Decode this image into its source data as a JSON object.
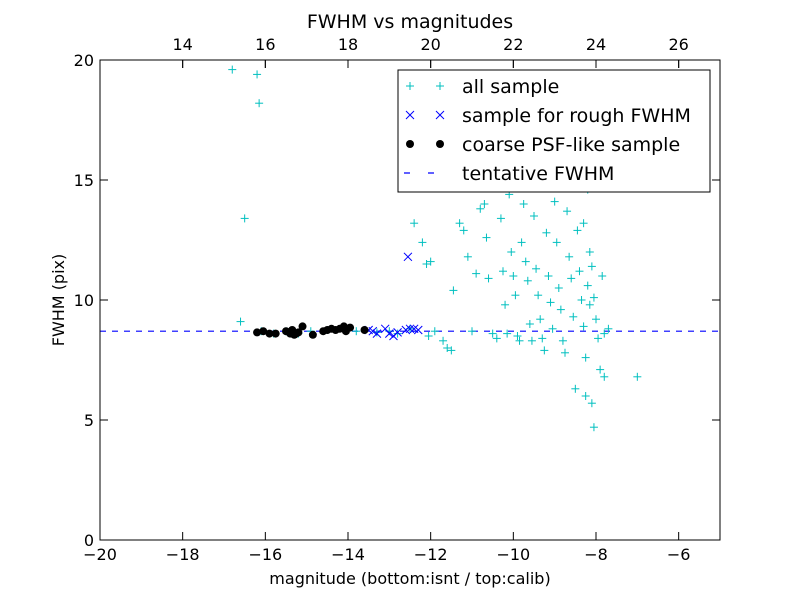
{
  "chart_data": {
    "type": "scatter",
    "title": "FWHM vs magnitudes",
    "xlabel": "magnitude (bottom:isnt / top:calib)",
    "ylabel": "FWHM (pix)",
    "xlim": [
      -20,
      -5
    ],
    "ylim": [
      0,
      20
    ],
    "x_ticks": [
      -20,
      -18,
      -16,
      -14,
      -12,
      -10,
      -8,
      -6
    ],
    "x_tick_labels": [
      "−20",
      "−18",
      "−16",
      "−14",
      "−12",
      "−10",
      "−8",
      "−6"
    ],
    "y_ticks": [
      0,
      5,
      10,
      15,
      20
    ],
    "y_tick_labels": [
      "0",
      "5",
      "10",
      "15",
      "20"
    ],
    "top_axis": {
      "ticks": [
        14,
        16,
        18,
        20,
        22,
        24,
        26
      ],
      "tick_labels": [
        "14",
        "16",
        "18",
        "20",
        "22",
        "24",
        "26"
      ],
      "offset": 32
    },
    "grid": false,
    "legend_position": "top-right",
    "colors": {
      "all_sample": "#00bfbf",
      "rough": "#0000ff",
      "coarse": "#000000",
      "tentative": "#0000ff"
    },
    "legend": [
      {
        "key": "all",
        "label": "all sample"
      },
      {
        "key": "rough",
        "label": "sample for rough FWHM"
      },
      {
        "key": "coarse",
        "label": "coarse PSF-like sample"
      },
      {
        "key": "tentative",
        "label": "tentative FWHM"
      }
    ],
    "tentative_fwhm": 8.7,
    "series": [
      {
        "name": "all sample",
        "marker": "plus",
        "points": [
          [
            -16.8,
            19.6
          ],
          [
            -16.2,
            19.4
          ],
          [
            -16.15,
            18.2
          ],
          [
            -16.5,
            13.4
          ],
          [
            -16.6,
            9.1
          ],
          [
            -16.1,
            8.7
          ],
          [
            -15.8,
            8.6
          ],
          [
            -15.5,
            8.7
          ],
          [
            -15.2,
            8.6
          ],
          [
            -14.9,
            8.7
          ],
          [
            -14.5,
            8.75
          ],
          [
            -14.1,
            8.8
          ],
          [
            -13.8,
            8.7
          ],
          [
            -13.3,
            8.65
          ],
          [
            -13.0,
            8.7
          ],
          [
            -12.8,
            8.6
          ],
          [
            -12.5,
            8.8
          ],
          [
            -12.4,
            13.2
          ],
          [
            -12.2,
            12.4
          ],
          [
            -12.1,
            11.5
          ],
          [
            -12.0,
            11.6
          ],
          [
            -12.05,
            8.5
          ],
          [
            -11.9,
            8.7
          ],
          [
            -11.7,
            8.3
          ],
          [
            -11.6,
            8.0
          ],
          [
            -11.5,
            7.9
          ],
          [
            -11.45,
            10.4
          ],
          [
            -11.3,
            13.2
          ],
          [
            -11.2,
            12.9
          ],
          [
            -11.1,
            11.8
          ],
          [
            -11.0,
            8.7
          ],
          [
            -10.9,
            11.1
          ],
          [
            -10.8,
            13.8
          ],
          [
            -10.7,
            14.0
          ],
          [
            -10.65,
            12.6
          ],
          [
            -10.6,
            10.9
          ],
          [
            -10.5,
            8.6
          ],
          [
            -10.4,
            8.4
          ],
          [
            -10.3,
            13.4
          ],
          [
            -10.25,
            11.2
          ],
          [
            -10.2,
            9.8
          ],
          [
            -10.15,
            8.6
          ],
          [
            -10.1,
            14.4
          ],
          [
            -10.05,
            12.0
          ],
          [
            -10.0,
            11.0
          ],
          [
            -9.95,
            10.2
          ],
          [
            -9.9,
            8.5
          ],
          [
            -9.85,
            8.3
          ],
          [
            -9.8,
            12.4
          ],
          [
            -9.75,
            14.0
          ],
          [
            -9.7,
            11.6
          ],
          [
            -9.65,
            10.8
          ],
          [
            -9.6,
            9.0
          ],
          [
            -9.55,
            8.3
          ],
          [
            -9.5,
            13.5
          ],
          [
            -9.45,
            11.3
          ],
          [
            -9.4,
            10.2
          ],
          [
            -9.35,
            9.2
          ],
          [
            -9.3,
            8.4
          ],
          [
            -9.25,
            7.9
          ],
          [
            -9.2,
            12.8
          ],
          [
            -9.15,
            11.0
          ],
          [
            -9.1,
            9.9
          ],
          [
            -9.05,
            8.8
          ],
          [
            -9.0,
            14.1
          ],
          [
            -8.95,
            12.4
          ],
          [
            -8.9,
            10.5
          ],
          [
            -8.85,
            9.6
          ],
          [
            -8.8,
            8.3
          ],
          [
            -8.75,
            7.8
          ],
          [
            -8.7,
            13.7
          ],
          [
            -8.65,
            11.8
          ],
          [
            -8.6,
            10.9
          ],
          [
            -8.55,
            9.3
          ],
          [
            -8.5,
            15.2
          ],
          [
            -8.45,
            12.9
          ],
          [
            -8.4,
            11.2
          ],
          [
            -8.35,
            10.0
          ],
          [
            -8.3,
            8.9
          ],
          [
            -8.25,
            7.6
          ],
          [
            -8.2,
            14.6
          ],
          [
            -8.15,
            12.0
          ],
          [
            -8.1,
            11.4
          ],
          [
            -8.05,
            10.1
          ],
          [
            -8.0,
            9.2
          ],
          [
            -7.95,
            8.4
          ],
          [
            -7.9,
            7.1
          ],
          [
            -7.85,
            11.0
          ],
          [
            -7.8,
            8.6
          ],
          [
            -7.7,
            8.8
          ],
          [
            -8.5,
            6.3
          ],
          [
            -8.25,
            6.0
          ],
          [
            -8.1,
            5.7
          ],
          [
            -8.05,
            4.7
          ],
          [
            -7.8,
            6.8
          ],
          [
            -7.0,
            6.8
          ],
          [
            -9.2,
            16.3
          ],
          [
            -9.0,
            15.9
          ],
          [
            -8.8,
            16.6
          ],
          [
            -8.6,
            17.3
          ],
          [
            -8.4,
            15.7
          ],
          [
            -9.4,
            14.8
          ],
          [
            -8.3,
            13.2
          ],
          [
            -8.2,
            10.6
          ],
          [
            -8.15,
            9.8
          ]
        ]
      },
      {
        "name": "sample for rough FWHM",
        "marker": "cross",
        "points": [
          [
            -13.5,
            8.75
          ],
          [
            -13.4,
            8.7
          ],
          [
            -13.3,
            8.6
          ],
          [
            -13.1,
            8.8
          ],
          [
            -13.0,
            8.6
          ],
          [
            -12.9,
            8.5
          ],
          [
            -12.8,
            8.65
          ],
          [
            -12.6,
            8.75
          ],
          [
            -12.5,
            8.8
          ],
          [
            -12.4,
            8.8
          ],
          [
            -12.3,
            8.75
          ],
          [
            -12.55,
            11.8
          ]
        ]
      },
      {
        "name": "coarse PSF-like sample",
        "marker": "dot",
        "points": [
          [
            -16.2,
            8.65
          ],
          [
            -16.05,
            8.7
          ],
          [
            -15.9,
            8.6
          ],
          [
            -15.75,
            8.6
          ],
          [
            -15.5,
            8.7
          ],
          [
            -15.4,
            8.6
          ],
          [
            -15.35,
            8.75
          ],
          [
            -15.3,
            8.55
          ],
          [
            -15.25,
            8.6
          ],
          [
            -15.2,
            8.65
          ],
          [
            -15.1,
            8.9
          ],
          [
            -14.85,
            8.55
          ],
          [
            -14.6,
            8.7
          ],
          [
            -14.5,
            8.75
          ],
          [
            -14.4,
            8.8
          ],
          [
            -14.3,
            8.75
          ],
          [
            -14.2,
            8.8
          ],
          [
            -14.1,
            8.9
          ],
          [
            -14.05,
            8.7
          ],
          [
            -13.95,
            8.85
          ],
          [
            -13.6,
            8.75
          ]
        ]
      }
    ]
  }
}
